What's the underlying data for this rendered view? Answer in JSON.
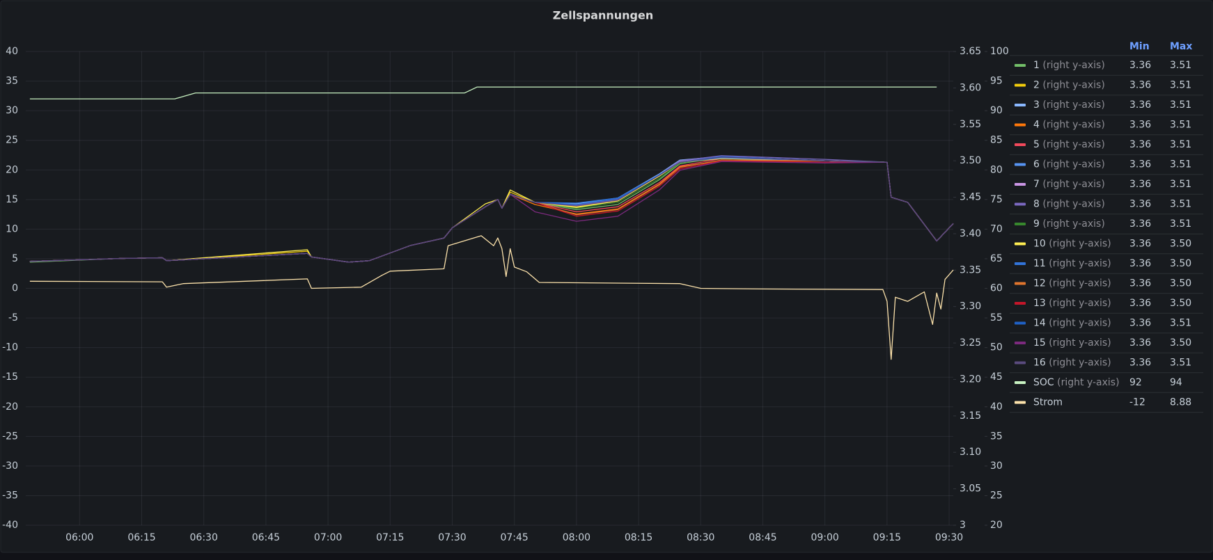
{
  "chart_data": {
    "type": "line",
    "title": "Zellspannungen",
    "xlim": [
      "05:47",
      "09:31"
    ],
    "xticks": [
      "06:00",
      "06:15",
      "06:30",
      "06:45",
      "07:00",
      "07:15",
      "07:30",
      "07:45",
      "08:00",
      "08:15",
      "08:30",
      "08:45",
      "09:00",
      "09:15",
      "09:30"
    ],
    "ylim": [
      -40,
      40
    ],
    "yticks": [
      -40,
      -35,
      -30,
      -25,
      -20,
      -15,
      -10,
      -5,
      0,
      5,
      10,
      15,
      20,
      25,
      30,
      35,
      40
    ],
    "y2lim": [
      3,
      3.65
    ],
    "y2ticks": [
      3,
      3.05,
      {
        "value": 3.1,
        "label": "3.10"
      },
      3.15,
      {
        "value": 3.2,
        "label": "3.20"
      },
      3.25,
      {
        "value": 3.3,
        "label": "3.30"
      },
      3.35,
      {
        "value": 3.4,
        "label": "3.40"
      },
      3.45,
      {
        "value": 3.5,
        "label": "3.50"
      },
      3.55,
      {
        "value": 3.6,
        "label": "3.60"
      },
      3.65
    ],
    "y3lim": [
      20,
      100
    ],
    "y3ticks": [
      20,
      25,
      30,
      35,
      40,
      45,
      50,
      55,
      60,
      65,
      70,
      75,
      80,
      85,
      90,
      95,
      100
    ],
    "grid": true,
    "legend_position": "right",
    "legend_columns": [
      "Min",
      "Max"
    ],
    "axis_note": "(right y-axis)",
    "x": [
      "05:48",
      "06:10",
      "06:20",
      "06:21",
      "06:55",
      "06:56",
      "07:05",
      "07:10",
      "07:20",
      "07:28",
      "07:30",
      "07:38",
      "07:41",
      "07:42",
      "07:44",
      "07:50",
      "08:00",
      "08:10",
      "08:20",
      "08:25",
      "08:35",
      "09:00",
      "09:15",
      "09:16",
      "09:20",
      "09:27",
      "09:31"
    ],
    "series": [
      {
        "name": "1",
        "color": "#73bf69",
        "axis": "y2",
        "min": "3.36",
        "max": "3.51",
        "values": [
          3.361,
          3.366,
          3.367,
          3.363,
          3.373,
          3.368,
          3.361,
          3.363,
          3.384,
          3.394,
          3.408,
          3.437,
          3.447,
          3.435,
          3.454,
          3.443,
          3.433,
          3.44,
          3.474,
          3.496,
          3.505,
          3.5,
          3.498,
          3.45,
          3.443,
          3.39,
          3.414
        ]
      },
      {
        "name": "2",
        "color": "#f2cc0c",
        "axis": "y2",
        "min": "3.36",
        "max": "3.51",
        "values": [
          3.362,
          3.366,
          3.367,
          3.363,
          3.376,
          3.368,
          3.361,
          3.363,
          3.384,
          3.394,
          3.408,
          3.437,
          3.447,
          3.435,
          3.457,
          3.443,
          3.437,
          3.445,
          3.479,
          3.498,
          3.504,
          3.5,
          3.498,
          3.45,
          3.443,
          3.39,
          3.414
        ]
      },
      {
        "name": "3",
        "color": "#8ab8ff",
        "axis": "y2",
        "min": "3.36",
        "max": "3.51",
        "values": [
          3.362,
          3.366,
          3.367,
          3.363,
          3.373,
          3.368,
          3.361,
          3.363,
          3.384,
          3.394,
          3.408,
          3.437,
          3.447,
          3.435,
          3.454,
          3.443,
          3.441,
          3.449,
          3.482,
          3.501,
          3.506,
          3.5,
          3.498,
          3.45,
          3.443,
          3.39,
          3.414
        ]
      },
      {
        "name": "4",
        "color": "#ff780a",
        "axis": "y2",
        "min": "3.36",
        "max": "3.51",
        "values": [
          3.362,
          3.366,
          3.367,
          3.363,
          3.373,
          3.368,
          3.361,
          3.363,
          3.384,
          3.394,
          3.408,
          3.437,
          3.447,
          3.435,
          3.454,
          3.44,
          3.427,
          3.434,
          3.468,
          3.492,
          3.5,
          3.5,
          3.498,
          3.45,
          3.443,
          3.39,
          3.414
        ]
      },
      {
        "name": "5",
        "color": "#f2495c",
        "axis": "y2",
        "min": "3.36",
        "max": "3.51",
        "values": [
          3.362,
          3.366,
          3.367,
          3.363,
          3.373,
          3.368,
          3.361,
          3.363,
          3.384,
          3.394,
          3.408,
          3.437,
          3.447,
          3.435,
          3.454,
          3.443,
          3.43,
          3.437,
          3.47,
          3.493,
          3.503,
          3.5,
          3.498,
          3.45,
          3.443,
          3.39,
          3.414
        ]
      },
      {
        "name": "6",
        "color": "#5794f2",
        "axis": "y2",
        "min": "3.36",
        "max": "3.51",
        "values": [
          3.362,
          3.366,
          3.367,
          3.363,
          3.373,
          3.368,
          3.361,
          3.363,
          3.384,
          3.394,
          3.408,
          3.437,
          3.447,
          3.435,
          3.454,
          3.443,
          3.44,
          3.448,
          3.481,
          3.5,
          3.506,
          3.5,
          3.498,
          3.45,
          3.443,
          3.39,
          3.414
        ]
      },
      {
        "name": "7",
        "color": "#ca95e5",
        "axis": "y2",
        "min": "3.36",
        "max": "3.51",
        "values": [
          3.362,
          3.366,
          3.367,
          3.363,
          3.373,
          3.368,
          3.361,
          3.363,
          3.384,
          3.394,
          3.408,
          3.437,
          3.447,
          3.435,
          3.454,
          3.443,
          3.438,
          3.446,
          3.48,
          3.499,
          3.505,
          3.5,
          3.498,
          3.45,
          3.443,
          3.39,
          3.414
        ]
      },
      {
        "name": "8",
        "color": "#7b68c0",
        "axis": "y2",
        "min": "3.36",
        "max": "3.51",
        "values": [
          3.362,
          3.366,
          3.367,
          3.363,
          3.373,
          3.368,
          3.361,
          3.363,
          3.384,
          3.394,
          3.408,
          3.437,
          3.447,
          3.435,
          3.454,
          3.443,
          3.439,
          3.447,
          3.481,
          3.5,
          3.507,
          3.502,
          3.498,
          3.45,
          3.443,
          3.39,
          3.414
        ]
      },
      {
        "name": "9",
        "color": "#37872d",
        "axis": "y2",
        "min": "3.36",
        "max": "3.51",
        "values": [
          3.362,
          3.366,
          3.367,
          3.363,
          3.373,
          3.368,
          3.361,
          3.363,
          3.384,
          3.394,
          3.408,
          3.437,
          3.447,
          3.435,
          3.454,
          3.443,
          3.435,
          3.443,
          3.476,
          3.497,
          3.505,
          3.5,
          3.498,
          3.45,
          3.443,
          3.39,
          3.414
        ]
      },
      {
        "name": "10",
        "color": "#ffee52",
        "axis": "y2",
        "min": "3.36",
        "max": "3.50",
        "values": [
          3.362,
          3.366,
          3.367,
          3.363,
          3.378,
          3.368,
          3.361,
          3.363,
          3.384,
          3.394,
          3.408,
          3.441,
          3.447,
          3.435,
          3.46,
          3.443,
          3.436,
          3.445,
          3.479,
          3.498,
          3.503,
          3.5,
          3.498,
          3.45,
          3.443,
          3.39,
          3.414
        ]
      },
      {
        "name": "11",
        "color": "#3274d9",
        "axis": "y2",
        "min": "3.36",
        "max": "3.50",
        "values": [
          3.362,
          3.366,
          3.367,
          3.363,
          3.373,
          3.368,
          3.361,
          3.363,
          3.384,
          3.394,
          3.408,
          3.437,
          3.447,
          3.435,
          3.454,
          3.443,
          3.442,
          3.449,
          3.481,
          3.498,
          3.504,
          3.5,
          3.498,
          3.45,
          3.443,
          3.39,
          3.414
        ]
      },
      {
        "name": "12",
        "color": "#e0752d",
        "axis": "y2",
        "min": "3.36",
        "max": "3.50",
        "values": [
          3.362,
          3.366,
          3.367,
          3.363,
          3.373,
          3.368,
          3.361,
          3.363,
          3.384,
          3.394,
          3.408,
          3.437,
          3.447,
          3.435,
          3.454,
          3.443,
          3.426,
          3.433,
          3.467,
          3.491,
          3.501,
          3.5,
          3.498,
          3.45,
          3.443,
          3.39,
          3.414
        ]
      },
      {
        "name": "13",
        "color": "#c4162a",
        "axis": "y2",
        "min": "3.36",
        "max": "3.50",
        "values": [
          3.362,
          3.366,
          3.367,
          3.363,
          3.373,
          3.368,
          3.361,
          3.363,
          3.384,
          3.394,
          3.408,
          3.437,
          3.447,
          3.435,
          3.454,
          3.443,
          3.424,
          3.431,
          3.465,
          3.489,
          3.5,
          3.498,
          3.498,
          3.45,
          3.443,
          3.39,
          3.414
        ]
      },
      {
        "name": "14",
        "color": "#1f60c4",
        "axis": "y2",
        "min": "3.36",
        "max": "3.51",
        "values": [
          3.362,
          3.366,
          3.367,
          3.363,
          3.373,
          3.368,
          3.361,
          3.363,
          3.384,
          3.394,
          3.408,
          3.437,
          3.447,
          3.435,
          3.454,
          3.443,
          3.44,
          3.448,
          3.48,
          3.498,
          3.506,
          3.5,
          3.498,
          3.45,
          3.443,
          3.39,
          3.414
        ]
      },
      {
        "name": "15",
        "color": "#7c2a7e",
        "axis": "y2",
        "min": "3.36",
        "max": "3.50",
        "values": [
          3.362,
          3.366,
          3.367,
          3.363,
          3.373,
          3.368,
          3.361,
          3.363,
          3.384,
          3.394,
          3.408,
          3.437,
          3.447,
          3.435,
          3.454,
          3.43,
          3.417,
          3.424,
          3.46,
          3.487,
          3.499,
          3.497,
          3.498,
          3.45,
          3.443,
          3.39,
          3.414
        ]
      },
      {
        "name": "16",
        "color": "#5a4b7e",
        "axis": "y2",
        "min": "3.36",
        "max": "3.51",
        "values": [
          3.362,
          3.366,
          3.367,
          3.363,
          3.373,
          3.368,
          3.361,
          3.363,
          3.384,
          3.394,
          3.408,
          3.437,
          3.447,
          3.435,
          3.454,
          3.443,
          3.438,
          3.446,
          3.48,
          3.498,
          3.505,
          3.5,
          3.498,
          3.45,
          3.443,
          3.39,
          3.414
        ]
      },
      {
        "name": "SOC",
        "color": "#c8f2c2",
        "axis": "y3",
        "min": "92",
        "max": "94",
        "x": [
          "05:48",
          "06:23",
          "06:28",
          "07:33",
          "07:36",
          "09:27"
        ],
        "values": [
          92,
          92,
          93,
          93,
          94,
          94
        ]
      },
      {
        "name": "Strom",
        "color": "#fce2ab",
        "min": "-12",
        "max": "8.88",
        "x": [
          "05:48",
          "06:20",
          "06:21",
          "06:25",
          "06:55",
          "06:56",
          "07:08",
          "07:13",
          "07:15",
          "07:28",
          "07:29",
          "07:37",
          "07:40",
          "07:41",
          "07:42",
          "07:43",
          "07:44",
          "07:45",
          "07:48",
          "07:51",
          "08:25",
          "08:30",
          "08:45",
          "09:14",
          "09:15",
          "09:16",
          "09:17",
          "09:20",
          "09:24",
          "09:26",
          "09:27",
          "09:28",
          "09:29",
          "09:31"
        ],
        "values": [
          1.2,
          1.1,
          0.2,
          0.8,
          1.6,
          0,
          0.2,
          2.2,
          2.9,
          3.3,
          7.2,
          8.88,
          7.2,
          8.5,
          6.7,
          2.0,
          6.7,
          3.6,
          2.8,
          1.0,
          0.8,
          0,
          -0.1,
          -0.2,
          -2.2,
          -12,
          -1.5,
          -2.2,
          -0.6,
          -6.1,
          -0.8,
          -3.5,
          1.5,
          3.1
        ]
      }
    ]
  }
}
